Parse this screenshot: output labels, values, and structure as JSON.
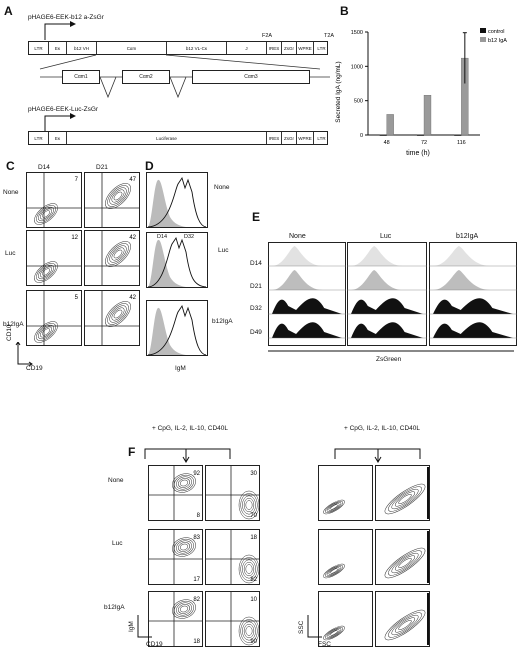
{
  "panels": {
    "A": {
      "letter": "A",
      "construct1_title": "pHAGE6-EEK-b12 a-ZsGr",
      "construct2_title": "pHAGE6-EEK-Luc-ZsGr",
      "c1_segments": [
        "LTR",
        "Eκ",
        "b12 VH",
        "Cαm",
        "b12 VL-Cκ",
        "J",
        "IRES",
        "ZsGr",
        "WPRE",
        "LTR"
      ],
      "c1_sites": [
        "F2A",
        "T2A"
      ],
      "c1_exons": [
        "Cαm1",
        "Cαm2",
        "Cαm3"
      ],
      "c2_segments": [
        "LTR",
        "Eκ",
        "Luciferase",
        "IRES",
        "ZsGr",
        "WPRE",
        "LTR"
      ]
    },
    "B": {
      "letter": "B",
      "ylabel": "Secreted IgA (ng/mL)",
      "xlabel": "time (h)",
      "legend": [
        "control",
        "b12 IgA"
      ]
    },
    "C": {
      "letter": "C",
      "col_labels": [
        "D14",
        "D21"
      ],
      "row_labels": [
        "None",
        "Luc",
        "b12IgA"
      ],
      "values": [
        [
          "7",
          "47"
        ],
        [
          "12",
          "42"
        ],
        [
          "5",
          "42"
        ]
      ],
      "xlabel": "CD19",
      "ylabel": "CD10"
    },
    "D": {
      "letter": "D",
      "row_labels": [
        "None",
        "Luc",
        "b12IgA"
      ],
      "annot": [
        "D14",
        "D32"
      ],
      "xlabel": "IgM"
    },
    "E": {
      "letter": "E",
      "col_labels": [
        "None",
        "Luc",
        "b12IgA"
      ],
      "row_labels": [
        "D14",
        "D21",
        "D32",
        "D49"
      ],
      "xlabel": "ZsGreen"
    },
    "F": {
      "letter": "F",
      "treat1": "+ CpG, IL-2, IL-10, CD40L",
      "treat2": "+ CpG, IL-2, IL-10, CD40L",
      "row_labels": [
        "None",
        "Luc",
        "b12IgA"
      ],
      "quad_values": [
        [
          [
            "92",
            "8"
          ],
          [
            "30",
            "70"
          ]
        ],
        [
          [
            "83",
            "17"
          ],
          [
            "18",
            "82"
          ]
        ],
        [
          [
            "82",
            "18"
          ],
          [
            "10",
            "90"
          ]
        ]
      ],
      "xlabel1": "CD19",
      "ylabel1": "IgM",
      "xlabel2": "FSC",
      "ylabel2": "SSC"
    }
  },
  "chart_data": {
    "type": "bar",
    "categories": [
      "48",
      "72",
      "116"
    ],
    "series": [
      {
        "name": "control",
        "values": [
          0,
          0,
          0
        ]
      },
      {
        "name": "b12 IgA",
        "values": [
          300,
          580,
          1120
        ]
      }
    ],
    "errors": [
      0,
      0,
      370
    ],
    "xlabel": "time (h)",
    "ylabel": "Secreted IgA (ng/mL)",
    "ylim": [
      0,
      1500
    ],
    "yticks": [
      0,
      500,
      1000,
      1500
    ],
    "legend": "top-right",
    "colors": {
      "control": "#111111",
      "b12 IgA": "#9a9a9a"
    }
  }
}
